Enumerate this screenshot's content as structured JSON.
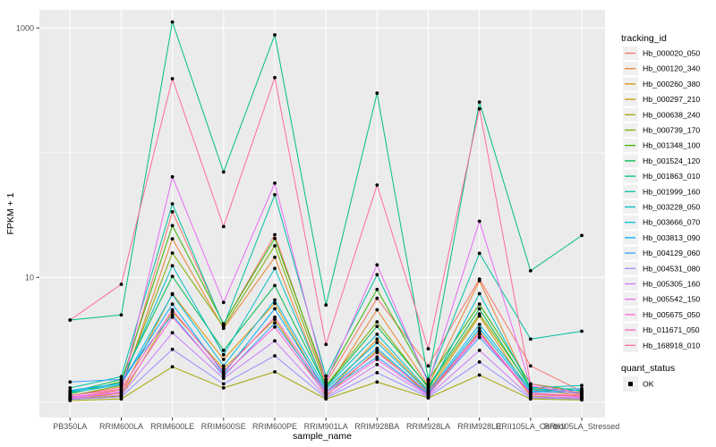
{
  "chart_data": {
    "type": "line",
    "title": "",
    "xlabel": "sample_name",
    "ylabel": "FPKM + 1",
    "y_scale": "log10",
    "ylim": [
      0.75,
      1400
    ],
    "grid": "on",
    "panel_bg": "#EBEBEB",
    "gridline_color": "#FFFFFF",
    "point_color": "#000000",
    "y_ticks": [
      {
        "label": "1000",
        "value": 1000
      },
      {
        "label": "10",
        "value": 10
      }
    ],
    "y_major_gridlines": [
      1000,
      10
    ],
    "y_minor_gridlines": [
      100,
      1
    ],
    "categories": [
      "PB350LA",
      "RRIM600LA",
      "RRIM600LE",
      "RRIM600SE",
      "RRIM600PE",
      "RRIM901LA",
      "RRIM928BA",
      "RRIM928LA",
      "RRIM928LE",
      "RRII105LA_Control",
      "RRII105LA_Stressed"
    ],
    "series": [
      {
        "name": "Hb_000020_050",
        "color": "#F8766D",
        "values": [
          1.12,
          1.32,
          33.6,
          4.2,
          22,
          1.42,
          6.8,
          1.95,
          9.7,
          1.95,
          1.22
        ]
      },
      {
        "name": "Hb_000120_340",
        "color": "#EA8331",
        "values": [
          1.08,
          1.26,
          20.4,
          3.9,
          14.5,
          1.26,
          5.5,
          1.36,
          9.4,
          1.26,
          1.13
        ]
      },
      {
        "name": "Hb_000260_380",
        "color": "#D89000",
        "values": [
          1.06,
          1.18,
          7.4,
          2.2,
          6.2,
          1.18,
          3.2,
          1.22,
          4.9,
          1.18,
          1.1
        ]
      },
      {
        "name": "Hb_000297_210",
        "color": "#C09B00",
        "values": [
          1.05,
          1.12,
          5.3,
          1.85,
          4.6,
          1.12,
          2.6,
          1.15,
          3.7,
          1.12,
          1.07
        ]
      },
      {
        "name": "Hb_000638_240",
        "color": "#A3A500",
        "values": [
          1.03,
          1.06,
          1.92,
          1.3,
          1.75,
          1.06,
          1.45,
          1.08,
          1.65,
          1.06,
          1.04
        ]
      },
      {
        "name": "Hb_000739_170",
        "color": "#7CAE00",
        "values": [
          1.12,
          1.36,
          15.7,
          4.0,
          17.9,
          1.36,
          4.4,
          1.3,
          5.1,
          1.32,
          1.16
        ]
      },
      {
        "name": "Hb_001348_100",
        "color": "#39B600",
        "values": [
          1.16,
          1.46,
          26,
          4.25,
          20.5,
          1.52,
          8.0,
          1.5,
          6.1,
          1.4,
          1.22
        ]
      },
      {
        "name": "Hb_001524_120",
        "color": "#00BB4E",
        "values": [
          1.2,
          1.52,
          10.2,
          2.6,
          8.6,
          1.33,
          4.05,
          1.33,
          5.6,
          1.28,
          1.18
        ]
      },
      {
        "name": "Hb_001863_010",
        "color": "#00BF7D",
        "values": [
          4.55,
          5.0,
          1117,
          70,
          880,
          6.0,
          300,
          1.52,
          255,
          11.3,
          21.7
        ]
      },
      {
        "name": "Hb_001999_160",
        "color": "#00C1A3",
        "values": [
          1.3,
          1.6,
          38.9,
          4.1,
          46,
          1.62,
          10.5,
          1.48,
          15.6,
          3.2,
          3.7
        ]
      },
      {
        "name": "Hb_003228_050",
        "color": "#00BFC4",
        "values": [
          1.22,
          1.42,
          12.4,
          2.4,
          11.8,
          1.31,
          3.5,
          1.24,
          7.4,
          1.3,
          1.36
        ]
      },
      {
        "name": "Hb_003666_070",
        "color": "#00BAE0",
        "values": [
          1.19,
          1.38,
          7.3,
          1.95,
          6.6,
          1.27,
          3.0,
          1.21,
          4.2,
          1.26,
          1.28
        ]
      },
      {
        "name": "Hb_003813_090",
        "color": "#00B0F6",
        "values": [
          1.24,
          1.41,
          6.1,
          1.7,
          5.6,
          1.22,
          2.7,
          1.18,
          3.9,
          1.22,
          1.25
        ]
      },
      {
        "name": "Hb_004129_060",
        "color": "#35A2FF",
        "values": [
          1.45,
          1.52,
          5.0,
          1.62,
          4.3,
          1.2,
          2.3,
          1.16,
          3.3,
          1.2,
          1.2
        ]
      },
      {
        "name": "Hb_004531_080",
        "color": "#9590FF",
        "values": [
          1.05,
          1.1,
          2.65,
          1.4,
          2.35,
          1.08,
          1.72,
          1.1,
          2.1,
          1.08,
          1.06
        ]
      },
      {
        "name": "Hb_005305_160",
        "color": "#C77CFF",
        "values": [
          1.07,
          1.14,
          3.6,
          1.55,
          3.1,
          1.1,
          2.0,
          1.12,
          2.6,
          1.1,
          1.08
        ]
      },
      {
        "name": "Hb_005542_150",
        "color": "#E76BF3",
        "values": [
          1.1,
          1.22,
          64,
          6.3,
          57,
          1.46,
          12.6,
          1.42,
          28.2,
          1.35,
          1.15
        ]
      },
      {
        "name": "Hb_005675_050",
        "color": "#FA62DB",
        "values": [
          1.09,
          1.19,
          4.8,
          1.66,
          4.0,
          1.15,
          2.2,
          1.14,
          3.5,
          1.15,
          1.1
        ]
      },
      {
        "name": "Hb_011671_050",
        "color": "#FF62BC",
        "values": [
          1.13,
          1.27,
          5.5,
          1.76,
          4.8,
          1.21,
          2.5,
          1.2,
          3.6,
          1.18,
          1.12
        ]
      },
      {
        "name": "Hb_168918_010",
        "color": "#FF6A98",
        "values": [
          4.55,
          8.8,
          392,
          25.6,
          400,
          2.9,
          55,
          2.68,
          225,
          1.4,
          1.18
        ]
      }
    ]
  },
  "legend": {
    "title": "tracking_id"
  },
  "legend2": {
    "title": "quant_status",
    "entries": [
      {
        "label": "OK",
        "symbol": "black-square-point"
      }
    ]
  }
}
